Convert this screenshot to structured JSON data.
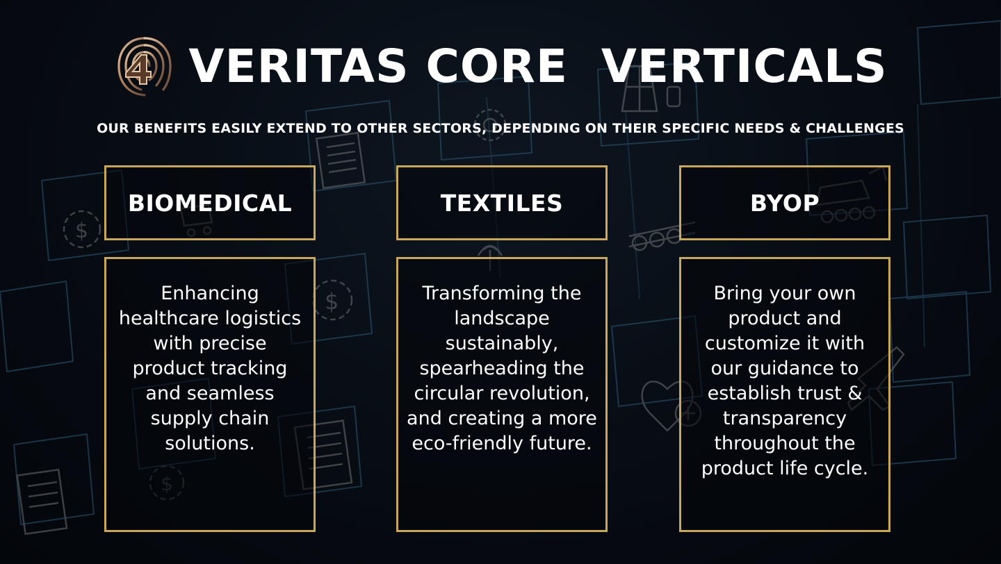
{
  "header": {
    "title": "VERITAS CORE  VERTICALS",
    "subtitle": "OUR BENEFITS EASILY EXTEND TO OTHER SECTORS, DEPENDING ON THEIR SPECIFIC NEEDS & CHALLENGES",
    "logo_icon": "fingerprint-logo-icon"
  },
  "verticals": [
    {
      "label": "BIOMEDICAL",
      "description": "Enhancing healthcare logistics with precise product tracking and seamless supply chain solutions."
    },
    {
      "label": "TEXTILES",
      "description": "Transforming the landscape sustainably, spearheading the circular revolution, and creating a more eco-friendly future."
    },
    {
      "label": "BYOP",
      "description": "Bring your own product and customize it with our guidance to establish trust & transparency throughout the product life cycle."
    }
  ],
  "colors": {
    "accent_gold": "#c9a85a",
    "background": "#05090f",
    "text": "#ffffff",
    "pattern_blue": "#3b6e8f"
  },
  "background_icons": [
    "dollar-coin-icon",
    "document-icon",
    "gear-icon",
    "oil-derrick-icon",
    "excavator-icon",
    "lumber-icon",
    "radio-tower-icon",
    "heart-health-icon",
    "airplane-icon",
    "shopping-cart-icon"
  ]
}
